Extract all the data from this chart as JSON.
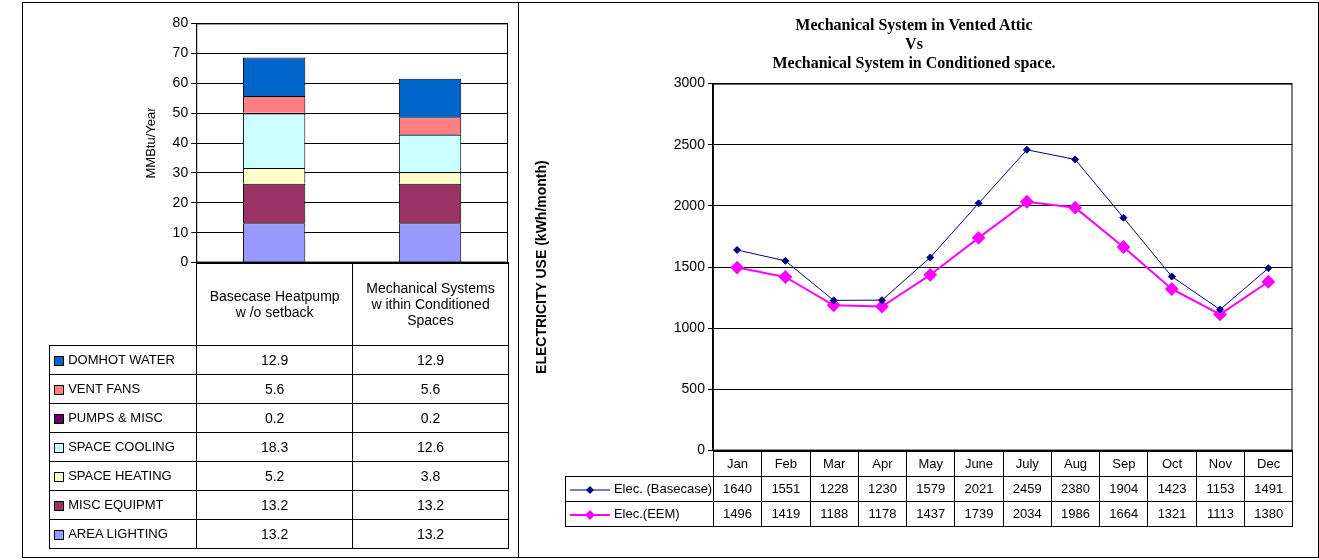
{
  "chart_data": [
    {
      "type": "bar",
      "stacked": true,
      "ylabel": "MMBtu/Year",
      "categories": [
        "Basecase Heatpump w /o setback",
        "Mechanical Systems w ithin Conditioned Spaces"
      ],
      "series": [
        {
          "name": "AREA LIGHTING",
          "color": "#9999ff",
          "values": [
            13.2,
            13.2
          ],
          "value_labels": [
            "13.2",
            "13.2"
          ]
        },
        {
          "name": "MISC  EQUIPMT",
          "color": "#993366",
          "values": [
            13.2,
            13.2
          ],
          "value_labels": [
            "13.2",
            "13.2"
          ]
        },
        {
          "name": "SPACE HEATING",
          "color": "#ffffcc",
          "values": [
            5.2,
            3.8
          ]
        },
        {
          "name": "SPACE COOLING",
          "color": "#ccffff",
          "values": [
            18.3,
            12.6
          ]
        },
        {
          "name": "PUMPS & MISC",
          "color": "#660066",
          "values": [
            0.2,
            0.2
          ]
        },
        {
          "name": "VENT FANS",
          "color": "#ff8080",
          "values": [
            5.6,
            5.6
          ]
        },
        {
          "name": "DOMHOT WATER",
          "color": "#0066cc",
          "values": [
            12.9,
            12.9
          ]
        }
      ],
      "ylim": [
        0,
        80
      ],
      "yticks": [
        0,
        10,
        20,
        30,
        40,
        50,
        60,
        70,
        80
      ],
      "grid": "y",
      "legend": "bottom",
      "data_labels": true
    },
    {
      "type": "line",
      "title": "Mechanical System in Vented Attic\nVs\nMechanical System in Conditioned space.",
      "ylabel": "ELECTRICITY USE (kWh/month)",
      "categories": [
        "Jan",
        "Feb",
        "Mar",
        "Apr",
        "May",
        "June",
        "July",
        "Aug",
        "Sep",
        "Oct",
        "Nov",
        "Dec"
      ],
      "series": [
        {
          "name": "Elec. (Basecase)",
          "color": "#000080",
          "values": [
            1640,
            1551,
            1228,
            1230,
            1579,
            2021,
            2459,
            2380,
            1904,
            1423,
            1153,
            1491
          ]
        },
        {
          "name": "Elec.(EEM)",
          "color": "#ff00ff",
          "values": [
            1496,
            1419,
            1188,
            1178,
            1437,
            1739,
            2034,
            1986,
            1664,
            1321,
            1113,
            1380
          ]
        }
      ],
      "ylim": [
        0,
        3000
      ],
      "yticks": [
        0,
        500,
        1000,
        1500,
        2000,
        2500,
        3000
      ],
      "grid": "y",
      "legend": "bottom",
      "marker": "diamond",
      "line_style": "solid",
      "data_labels": true
    }
  ]
}
